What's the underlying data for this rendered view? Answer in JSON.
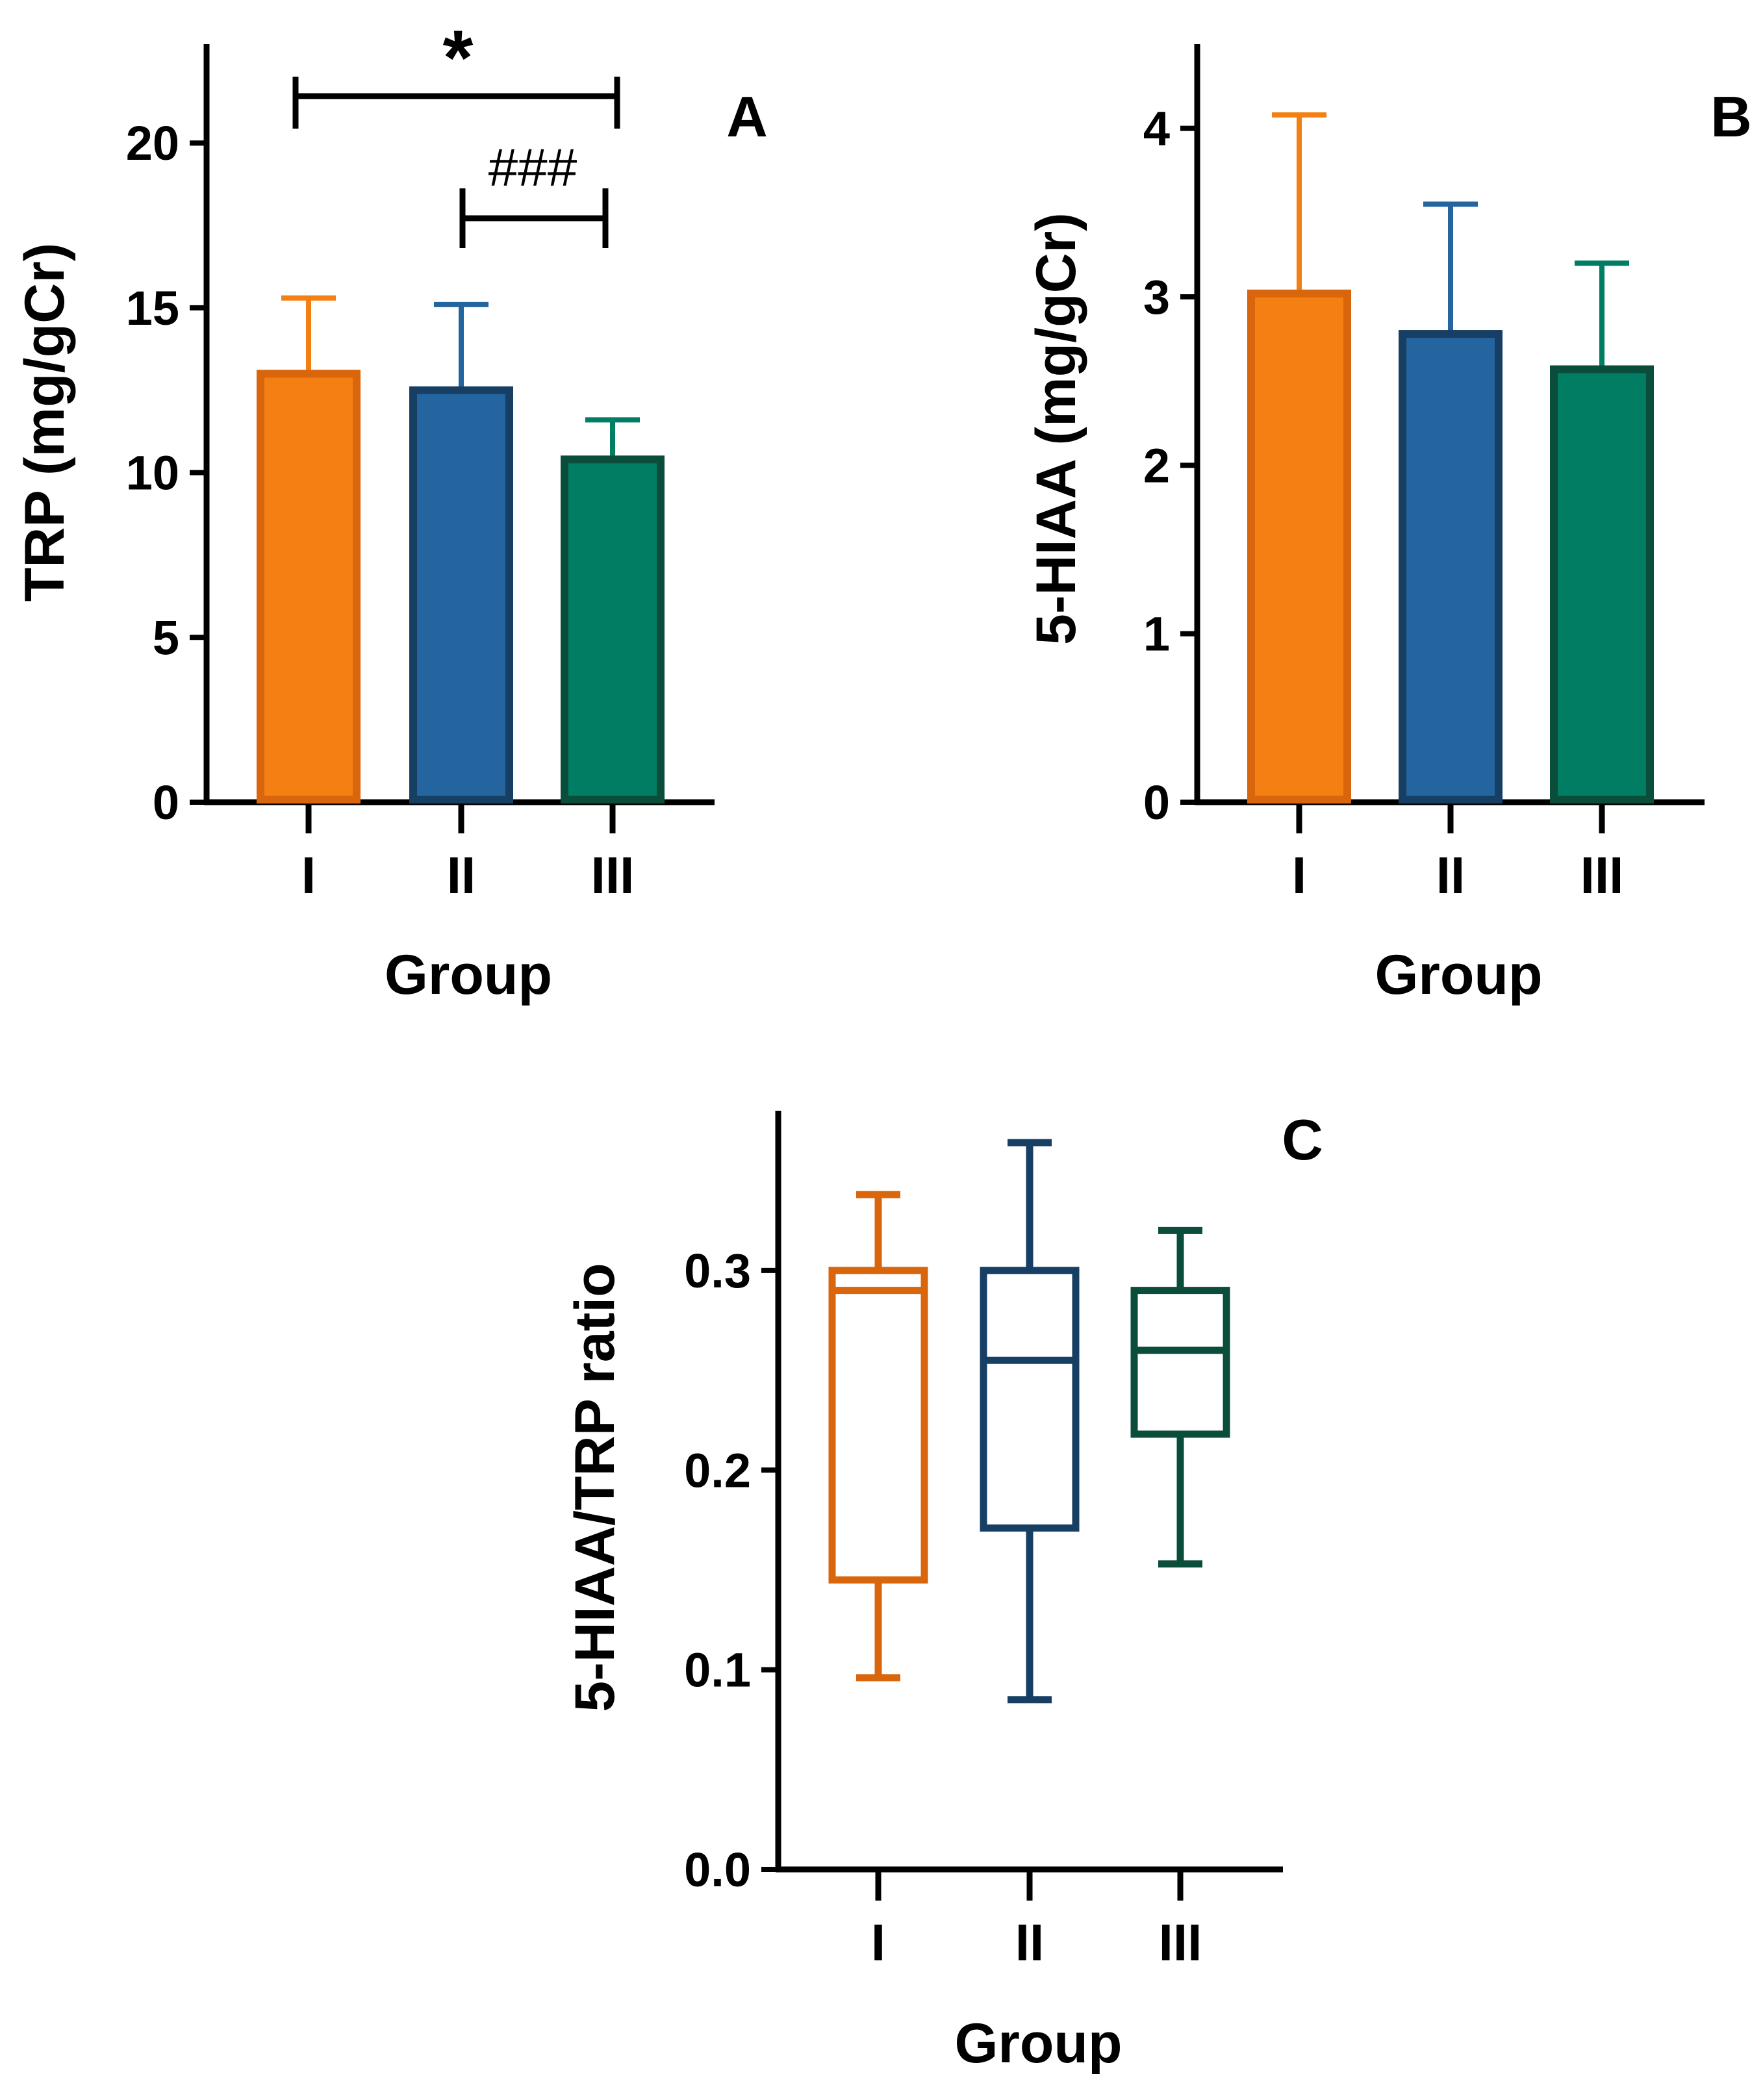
{
  "colors": {
    "I": "#f47f12",
    "II": "#2465a0",
    "III": "#007d62",
    "I_edge": "#d9660c",
    "II_edge": "#173f63",
    "III_edge": "#0b4d3b",
    "axis": "#000000"
  },
  "chart_data": [
    {
      "panel": "A",
      "type": "bar",
      "categories": [
        "I",
        "II",
        "III"
      ],
      "values": [
        13.0,
        12.5,
        10.4
      ],
      "error_upper": [
        15.3,
        15.1,
        11.6
      ],
      "title": "",
      "xlabel": "Group",
      "ylabel": "TRP (mg/gCr)",
      "ylim": [
        0,
        23
      ],
      "yticks": [
        0,
        5,
        10,
        15,
        20
      ],
      "ytick_labels": [
        "0",
        "5",
        "10",
        "15",
        "20"
      ],
      "significance": [
        {
          "from": "I",
          "to": "III",
          "label": "*"
        },
        {
          "from": "II",
          "to": "III",
          "label": "###"
        }
      ]
    },
    {
      "panel": "B",
      "type": "bar",
      "categories": [
        "I",
        "II",
        "III"
      ],
      "values": [
        3.02,
        2.78,
        2.57
      ],
      "error_upper": [
        4.08,
        3.55,
        3.2
      ],
      "title": "",
      "xlabel": "Group",
      "ylabel": "5-HIAA (mg/gCr)",
      "ylim": [
        0,
        4.5
      ],
      "yticks": [
        0,
        1,
        2,
        3,
        4
      ],
      "ytick_labels": [
        "0",
        "1",
        "2",
        "3",
        "4"
      ]
    },
    {
      "panel": "C",
      "type": "box",
      "categories": [
        "I",
        "II",
        "III"
      ],
      "boxes": [
        {
          "name": "I",
          "min": 0.096,
          "q1": 0.145,
          "median": 0.29,
          "q3": 0.3,
          "max": 0.338
        },
        {
          "name": "II",
          "min": 0.085,
          "q1": 0.171,
          "median": 0.255,
          "q3": 0.3,
          "max": 0.364
        },
        {
          "name": "III",
          "min": 0.153,
          "q1": 0.218,
          "median": 0.26,
          "q3": 0.29,
          "max": 0.32
        }
      ],
      "title": "",
      "xlabel": "Group",
      "ylabel": "5-HIAA/TRP ratio",
      "ylim": [
        0,
        0.38
      ],
      "yticks": [
        0.0,
        0.1,
        0.2,
        0.3
      ],
      "ytick_labels": [
        "0.0",
        "0.1",
        "0.2",
        "0.3"
      ]
    }
  ]
}
